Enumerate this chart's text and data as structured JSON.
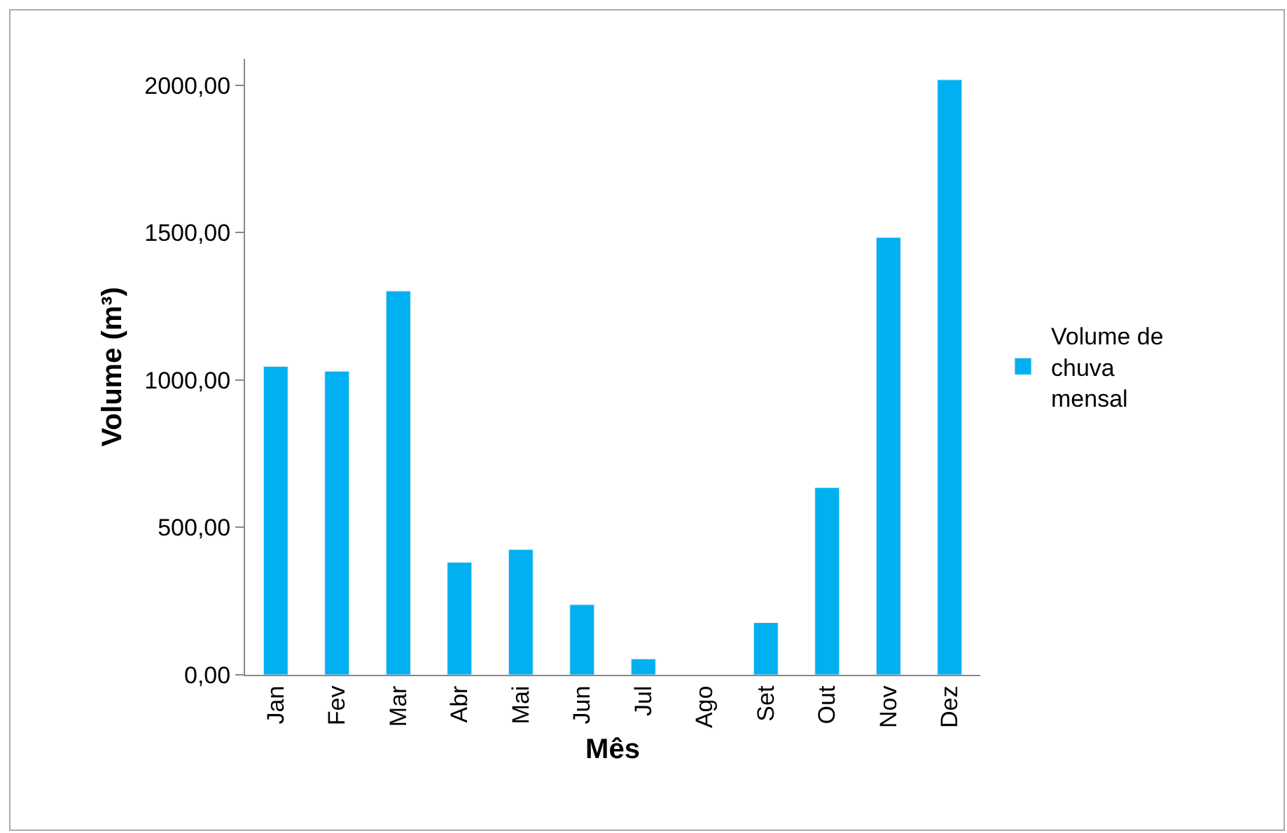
{
  "chart_data": {
    "type": "bar",
    "xlabel": "Mês",
    "ylabel": "Volume (m³)",
    "categories": [
      "Jan",
      "Fev",
      "Mar",
      "Abr",
      "Mai",
      "Jun",
      "Jul",
      "Ago",
      "Set",
      "Out",
      "Nov",
      "Dez"
    ],
    "series": [
      {
        "name": "Volume de chuva mensal",
        "color": "#00b0f0",
        "values": [
          1046,
          1030,
          1302,
          382,
          425,
          238,
          54,
          null,
          177,
          635,
          1484,
          2019
        ]
      }
    ],
    "ylim": [
      0,
      2090
    ],
    "yticks": [
      {
        "value": 0,
        "label": "0,00"
      },
      {
        "value": 500,
        "label": "500,00"
      },
      {
        "value": 1000,
        "label": "1000,00"
      },
      {
        "value": 1500,
        "label": "1500,00"
      },
      {
        "value": 2000,
        "label": "2000,00"
      }
    ],
    "grid": false,
    "legend": "right"
  }
}
